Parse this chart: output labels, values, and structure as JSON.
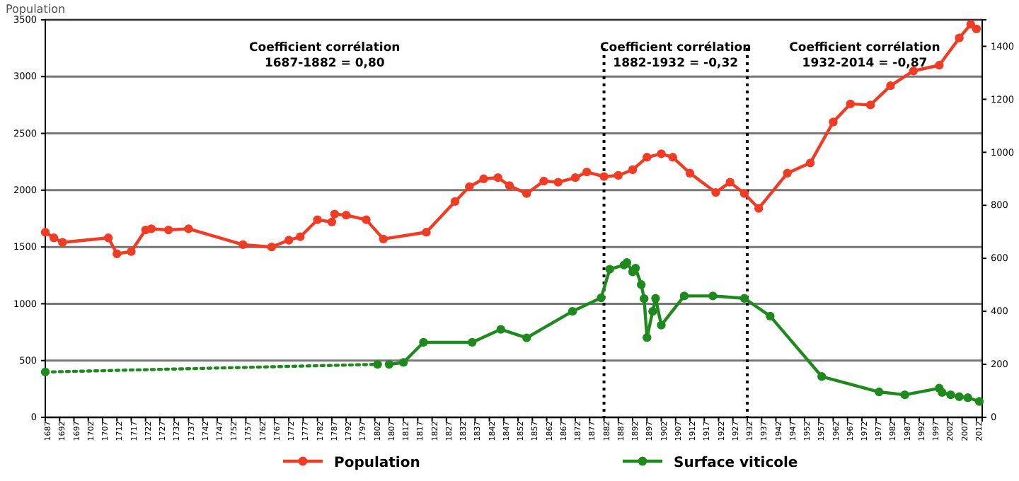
{
  "chart_data": {
    "type": "line",
    "ylabel": "Population",
    "annotations": [
      "Coefficient corrélation\n1687-1882  = 0,80",
      "Coefficient corrélation\n1882-1932  = -0,32",
      "Coefficient corrélation\n1932-2014  = -0,87"
    ],
    "series": [
      {
        "name": "Population",
        "color": "#f03c24",
        "x": [
          1687,
          1690,
          1693,
          1709,
          1712,
          1717,
          1722,
          1724,
          1730,
          1737,
          1756,
          1766,
          1772,
          1776,
          1782,
          1787,
          1788,
          1792,
          1799,
          1805,
          1820,
          1830,
          1835,
          1840,
          1845,
          1849,
          1855,
          1861,
          1866,
          1872,
          1876,
          1882,
          1887,
          1892,
          1897,
          1902,
          1906,
          1912,
          1921,
          1926,
          1931,
          1936,
          1946,
          1954,
          1962,
          1968,
          1975,
          1982,
          1990,
          1999,
          2006,
          2010,
          2012
        ],
        "values": [
          1630,
          1580,
          1540,
          1580,
          1440,
          1460,
          1650,
          1660,
          1650,
          1660,
          1520,
          1500,
          1560,
          1590,
          1740,
          1720,
          1790,
          1780,
          1740,
          1570,
          1630,
          1900,
          2030,
          2100,
          2110,
          2040,
          1970,
          2080,
          2070,
          2110,
          2160,
          2120,
          2130,
          2180,
          2290,
          2320,
          2290,
          2150,
          1980,
          2070,
          1970,
          1840,
          2150,
          2240,
          2600,
          2760,
          2750,
          2920,
          3050,
          3100,
          3340,
          3460,
          3420
        ]
      },
      {
        "color": "#1e8a1e",
        "axis": "y2",
        "line_style": "dotted",
        "x": [
          1687,
          1803
        ],
        "values": [
          171,
          200
        ]
      },
      {
        "name": "Surface viticole",
        "color": "#1e8a1e",
        "axis": "y2",
        "x": [
          1807,
          1812,
          1819,
          1836,
          1846,
          1855,
          1871,
          1881,
          1884,
          1889,
          1890,
          1892,
          1893,
          1895,
          1896,
          1897,
          1899,
          1900,
          1902,
          1910,
          1920,
          1931,
          1940,
          1958,
          1978,
          1987,
          1999,
          2000,
          2003,
          2006,
          2009,
          2013
        ],
        "values": [
          200,
          207,
          283,
          283,
          332,
          300,
          400,
          451,
          559,
          575,
          584,
          549,
          563,
          501,
          448,
          301,
          400,
          449,
          348,
          458,
          458,
          449,
          382,
          154,
          96,
          85,
          110,
          94,
          85,
          78,
          74,
          60
        ]
      }
    ],
    "xlim": [
      1687,
      2014
    ],
    "xticks": [
      1687,
      1692,
      1697,
      1702,
      1707,
      1712,
      1717,
      1722,
      1727,
      1732,
      1737,
      1742,
      1747,
      1752,
      1757,
      1762,
      1767,
      1772,
      1777,
      1782,
      1787,
      1792,
      1797,
      1802,
      1807,
      1812,
      1817,
      1822,
      1827,
      1832,
      1837,
      1842,
      1847,
      1852,
      1857,
      1862,
      1867,
      1872,
      1877,
      1882,
      1887,
      1892,
      1897,
      1902,
      1907,
      1912,
      1917,
      1922,
      1927,
      1932,
      1937,
      1942,
      1947,
      1952,
      1957,
      1962,
      1967,
      1972,
      1977,
      1982,
      1987,
      1992,
      1997,
      2002,
      2007,
      2012
    ],
    "ylim": [
      0,
      3500
    ],
    "yticks": [
      0,
      500,
      1000,
      1500,
      2000,
      2500,
      3000,
      3500
    ],
    "y2lim": [
      0,
      1500
    ],
    "y2ticks": [
      0,
      200,
      400,
      600,
      800,
      1000,
      1200,
      1400
    ],
    "ref_lines": [
      {
        "axis": "x",
        "value": 1882,
        "line_style": "dotted"
      },
      {
        "axis": "x",
        "value": 1932,
        "line_style": "dotted"
      }
    ],
    "grid": "y",
    "legend": "bottom",
    "marker": "circle",
    "line_style": "solid"
  }
}
